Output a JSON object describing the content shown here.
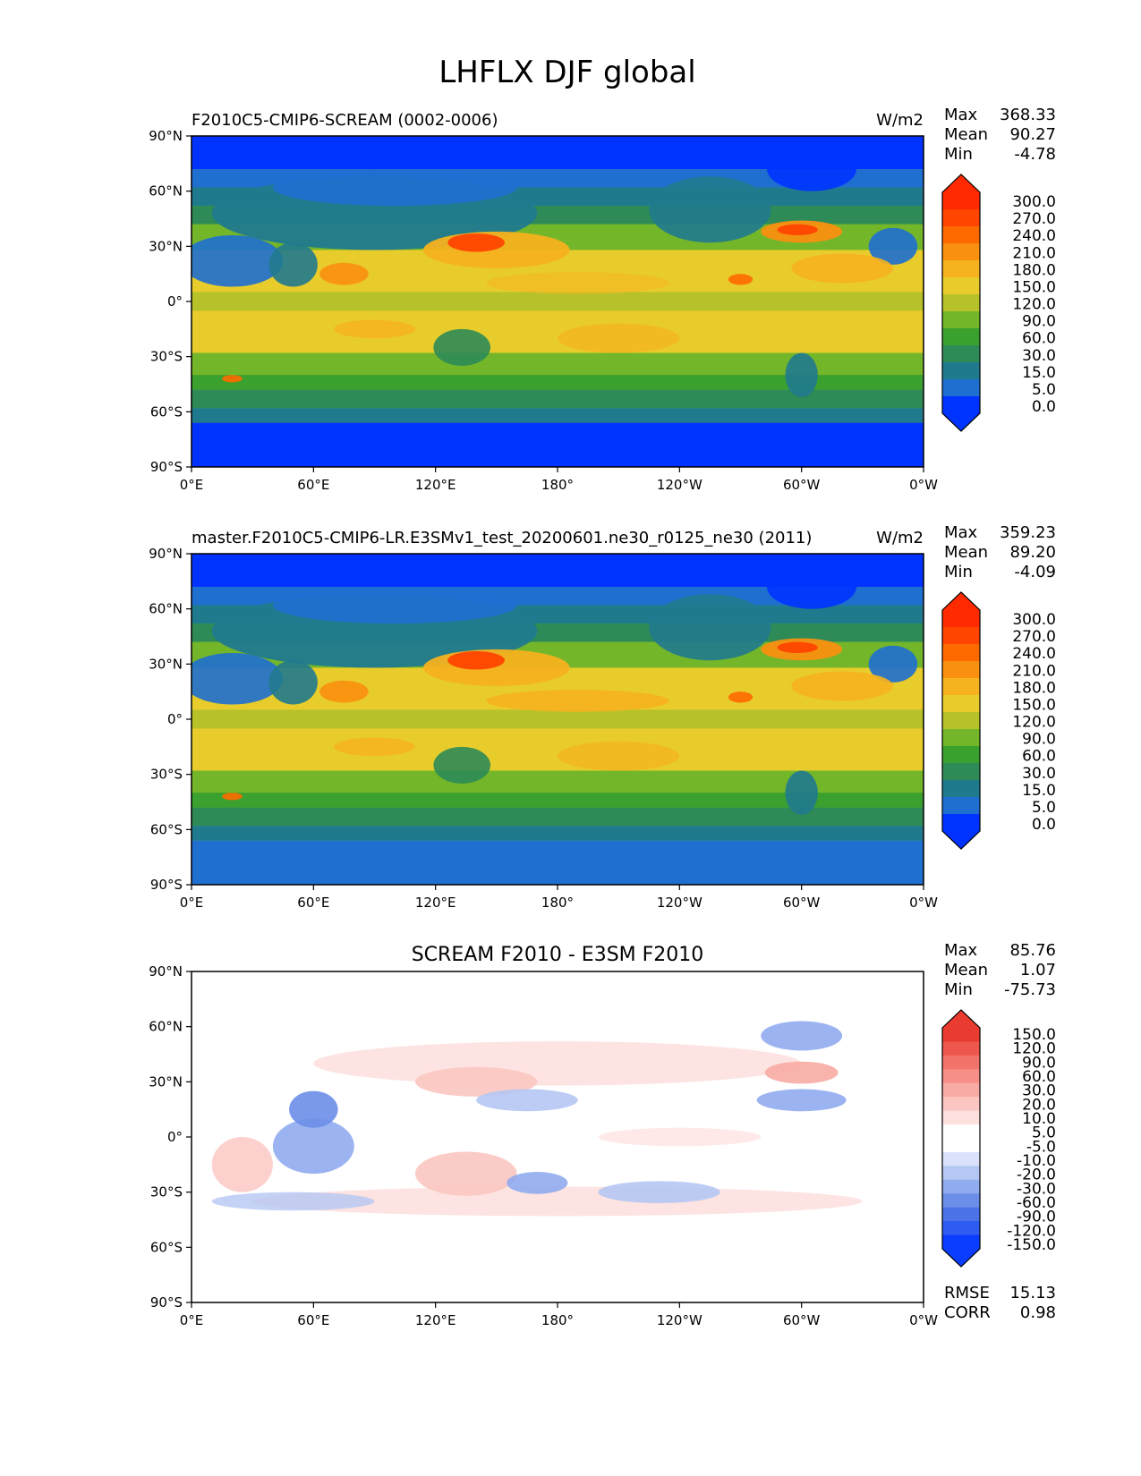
{
  "figure": {
    "title": "LHFLX DJF global"
  },
  "colors": {
    "abs_levels": [
      "#0033ff",
      "#1e6fd0",
      "#207a8e",
      "#2e8b57",
      "#3aa02e",
      "#74b62a",
      "#b7c22a",
      "#e8cc2b",
      "#f6b21f",
      "#f99010",
      "#ff6a00",
      "#ff4500",
      "#ff2a00"
    ],
    "diff_levels": [
      "#0a3dff",
      "#2f5cf0",
      "#4b72e6",
      "#6b8ee8",
      "#90abee",
      "#b5c7f4",
      "#d9e2fa",
      "#ffffff",
      "#ffffff",
      "#fde0de",
      "#fbc6c1",
      "#f8aba4",
      "#f58f87",
      "#f2736a",
      "#ee574d",
      "#ea3b30"
    ]
  },
  "chart_data": [
    {
      "type": "heatmap",
      "title": "",
      "left_title": "F2010C5-CMIP6-SCREAM (0002-0006)",
      "units": "W/m2",
      "stats": {
        "max_label": "Max",
        "max": "368.33",
        "mean_label": "Mean",
        "mean": "90.27",
        "min_label": "Min",
        "min": "-4.78"
      },
      "x_ticks": [
        "0°E",
        "60°E",
        "120°E",
        "180°",
        "120°W",
        "60°W",
        "0°W"
      ],
      "y_ticks": [
        "90°N",
        "60°N",
        "30°N",
        "0°",
        "30°S",
        "60°S",
        "90°S"
      ],
      "xlim": [
        0,
        360
      ],
      "ylim": [
        -90,
        90
      ],
      "colorbar_labels": [
        "300.0",
        "270.0",
        "240.0",
        "210.0",
        "180.0",
        "150.0",
        "120.0",
        "90.0",
        "60.0",
        "30.0",
        "15.0",
        "5.0",
        "0.0"
      ],
      "colorbar_extend": "both",
      "legend_position": "right"
    },
    {
      "type": "heatmap",
      "title": "",
      "left_title": "master.F2010C5-CMIP6-LR.E3SMv1_test_20200601.ne30_r0125_ne30 (2011)",
      "units": "W/m2",
      "stats": {
        "max_label": "Max",
        "max": "359.23",
        "mean_label": "Mean",
        "mean": "89.20",
        "min_label": "Min",
        "min": "-4.09"
      },
      "x_ticks": [
        "0°E",
        "60°E",
        "120°E",
        "180°",
        "120°W",
        "60°W",
        "0°W"
      ],
      "y_ticks": [
        "90°N",
        "60°N",
        "30°N",
        "0°",
        "30°S",
        "60°S",
        "90°S"
      ],
      "xlim": [
        0,
        360
      ],
      "ylim": [
        -90,
        90
      ],
      "colorbar_labels": [
        "300.0",
        "270.0",
        "240.0",
        "210.0",
        "180.0",
        "150.0",
        "120.0",
        "90.0",
        "60.0",
        "30.0",
        "15.0",
        "5.0",
        "0.0"
      ],
      "colorbar_extend": "both",
      "legend_position": "right"
    },
    {
      "type": "heatmap",
      "title": "SCREAM F2010 - E3SM F2010",
      "left_title": "",
      "units": "",
      "stats": {
        "max_label": "Max",
        "max": "85.76",
        "mean_label": "Mean",
        "mean": "1.07",
        "min_label": "Min",
        "min": "-75.73"
      },
      "x_ticks": [
        "0°E",
        "60°E",
        "120°E",
        "180°",
        "120°W",
        "60°W",
        "0°W"
      ],
      "y_ticks": [
        "90°N",
        "60°N",
        "30°N",
        "0°",
        "30°S",
        "60°S",
        "90°S"
      ],
      "xlim": [
        0,
        360
      ],
      "ylim": [
        -90,
        90
      ],
      "colorbar_labels": [
        "150.0",
        "120.0",
        "90.0",
        "60.0",
        "30.0",
        "20.0",
        "10.0",
        "5.0",
        "-5.0",
        "-10.0",
        "-20.0",
        "-30.0",
        "-60.0",
        "-90.0",
        "-120.0",
        "-150.0"
      ],
      "colorbar_extend": "both",
      "legend_position": "right",
      "extra_stats": {
        "rmse_label": "RMSE",
        "rmse": "15.13",
        "corr_label": "CORR",
        "corr": "0.98"
      }
    }
  ]
}
